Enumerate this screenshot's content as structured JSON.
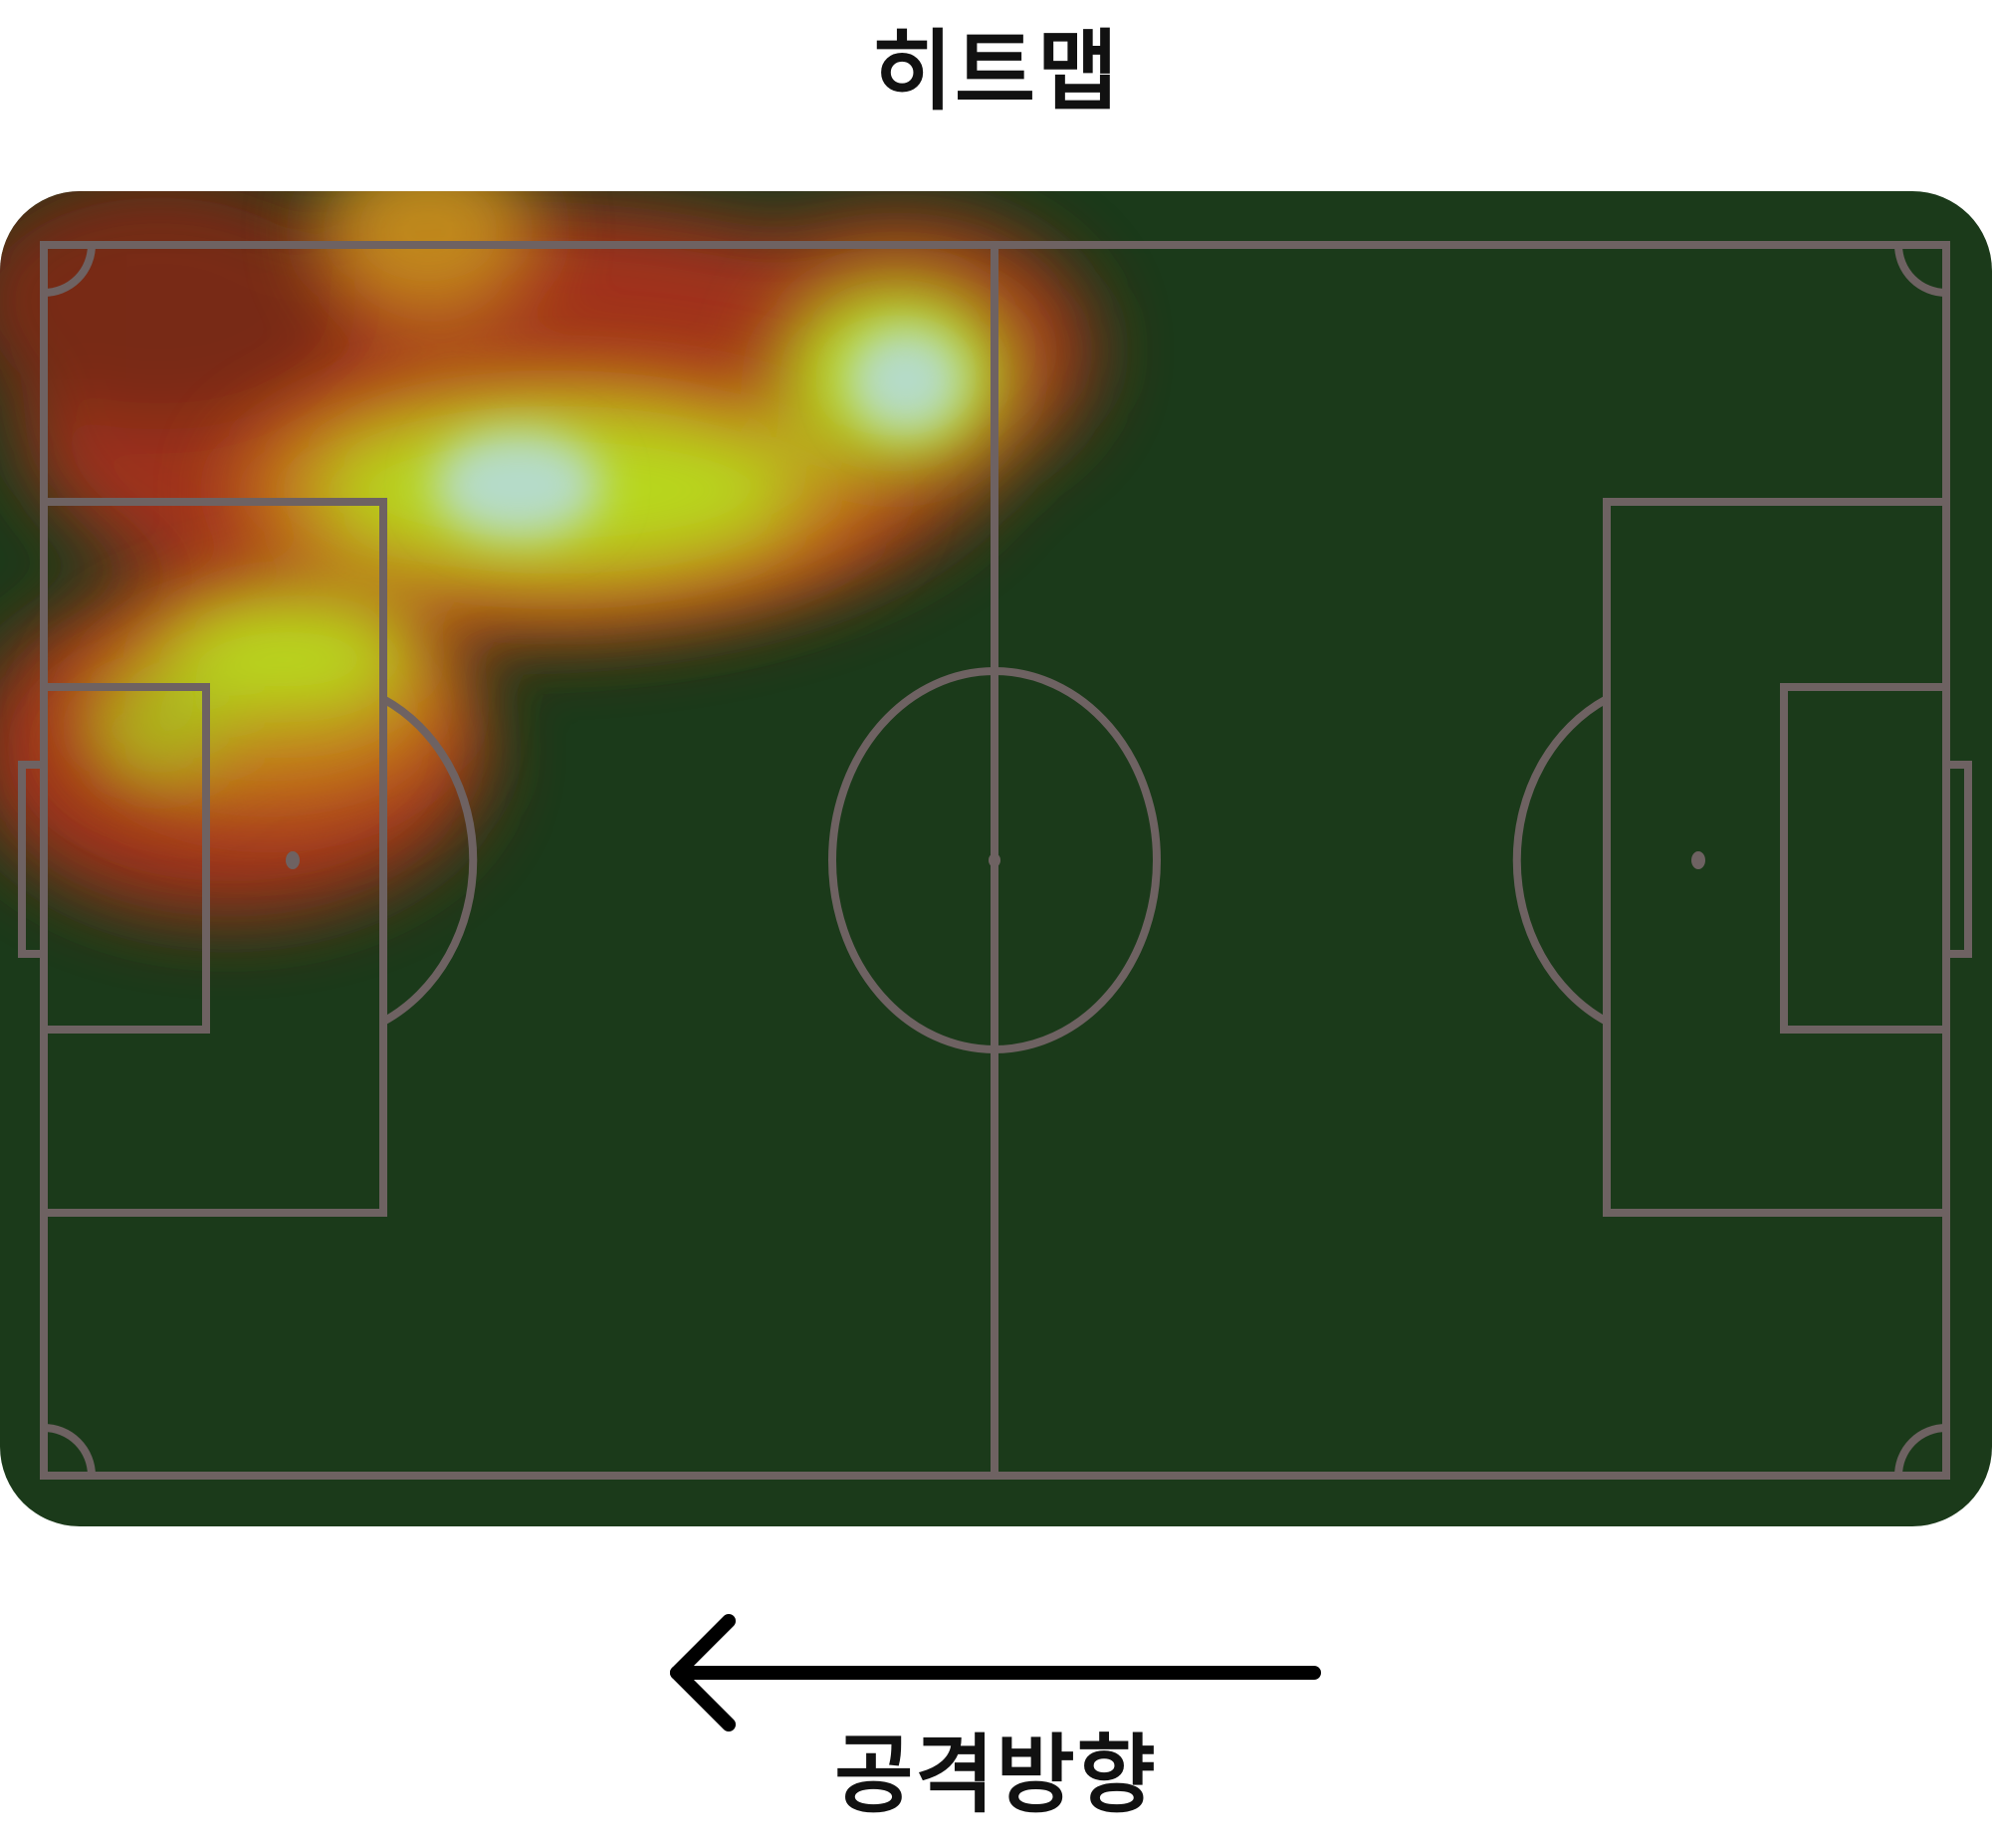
{
  "title": "히트맵",
  "attack_direction": {
    "label": "공격방향",
    "arrow": "left"
  },
  "colors": {
    "pitch": "#1b3a1a",
    "lines": "#6e6262",
    "heat_low": "#b33a1c",
    "heat_mid": "#b8d81f",
    "heat_high": "#b5dbc9",
    "text": "#111111"
  }
}
